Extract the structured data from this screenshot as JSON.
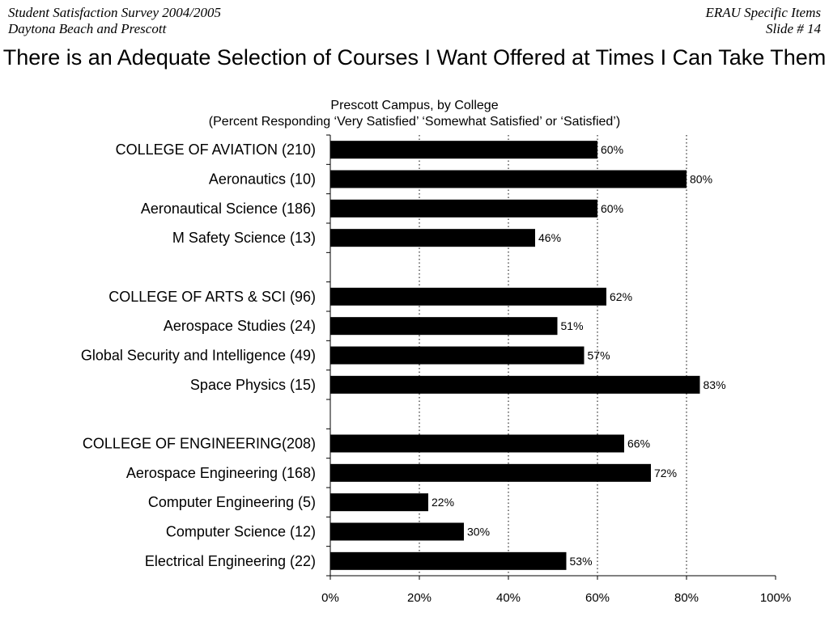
{
  "header": {
    "left_line1": "Student Satisfaction Survey 2004/2005",
    "left_line2": "Daytona Beach and Prescott",
    "right_line1": "ERAU Specific Items",
    "right_line2": "Slide # 14"
  },
  "chart_data": {
    "type": "bar",
    "orientation": "horizontal",
    "title": "There is an Adequate Selection of Courses I Want Offered at Times I Can Take Them",
    "subtitle": "Prescott Campus, by College",
    "subtitle2": "(Percent Responding ‘Very Satisfied’ ‘Somewhat Satisfied’ or ‘Satisfied’)",
    "categories": [
      "COLLEGE OF AVIATION (210)",
      "Aeronautics (10)",
      "Aeronautical Science (186)",
      "M Safety Science (13)",
      "",
      "COLLEGE OF ARTS & SCI (96)",
      "Aerospace Studies (24)",
      "Global Security and Intelligence (49)",
      "Space Physics (15)",
      "",
      "COLLEGE OF ENGINEERING(208)",
      "Aerospace Engineering (168)",
      "Computer Engineering (5)",
      "Computer Science (12)",
      "Electrical Engineering (22)"
    ],
    "values": [
      60,
      80,
      60,
      46,
      null,
      62,
      51,
      57,
      83,
      null,
      66,
      72,
      22,
      30,
      53
    ],
    "value_labels": [
      "60%",
      "80%",
      "60%",
      "46%",
      "",
      "62%",
      "51%",
      "57%",
      "83%",
      "",
      "66%",
      "72%",
      "22%",
      "30%",
      "53%"
    ],
    "xlim": [
      0,
      100
    ],
    "xticks": [
      "0%",
      "20%",
      "40%",
      "60%",
      "80%",
      "100%"
    ],
    "grid": "vertical dotted",
    "bar_color": "#000000"
  }
}
